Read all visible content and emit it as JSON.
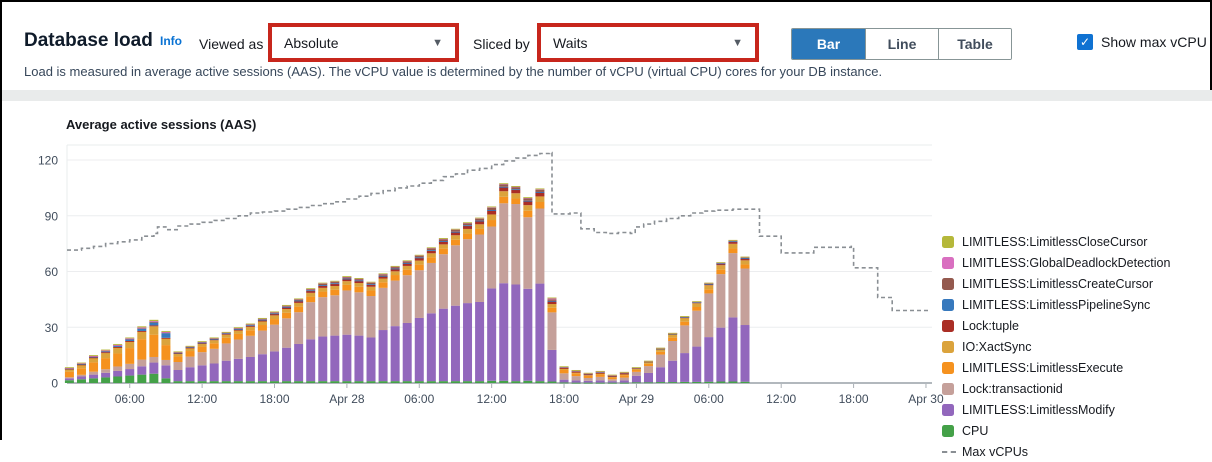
{
  "header": {
    "title": "Database load",
    "info_label": "Info"
  },
  "controls": {
    "viewed_as_label": "Viewed as",
    "viewed_as_value": "Absolute",
    "sliced_by_label": "Sliced by",
    "sliced_by_value": "Waits",
    "view_buttons": [
      {
        "label": "Bar",
        "selected": true
      },
      {
        "label": "Line",
        "selected": false
      },
      {
        "label": "Table",
        "selected": false
      }
    ],
    "show_max_vcpu_label": "Show max vCPU",
    "show_max_vcpu_checked": true
  },
  "description": "Load is measured in average active sessions (AAS). The vCPU value is determined by the number of vCPU (virtual CPU) cores for your DB instance.",
  "icons": {
    "caret": "▼",
    "check": "✓"
  },
  "colors": {
    "annotation_red": "#c7261c",
    "selected_button_blue": "#2b78ba",
    "checkbox_blue": "#0f72d2",
    "info_link_blue": "#0972d3",
    "max_vcpu_gray": "#8a8f94"
  },
  "chart_data": {
    "type": "bar",
    "stacked": true,
    "title": "Average active sessions (AAS)",
    "ylabel": "",
    "xlabel": "",
    "grid": true,
    "legend_position": "right",
    "y_axis": {
      "min": 0,
      "max": 129,
      "ticks": [
        0,
        30,
        60,
        90,
        120
      ]
    },
    "x_axis": {
      "unit": "hours since Apr 27 00:00",
      "domain": [
        0.8,
        72.5
      ],
      "ticks": [
        {
          "t": 6,
          "label": "06:00"
        },
        {
          "t": 12,
          "label": "12:00"
        },
        {
          "t": 18,
          "label": "18:00"
        },
        {
          "t": 24,
          "label": "Apr 28"
        },
        {
          "t": 30,
          "label": "06:00"
        },
        {
          "t": 36,
          "label": "12:00"
        },
        {
          "t": 42,
          "label": "18:00"
        },
        {
          "t": 48,
          "label": "Apr 29"
        },
        {
          "t": 54,
          "label": "06:00"
        },
        {
          "t": 60,
          "label": "12:00"
        },
        {
          "t": 66,
          "label": "18:00"
        },
        {
          "t": 72,
          "label": "Apr 30"
        }
      ]
    },
    "bar_start_hour": 1,
    "bar_interval_hours": 1,
    "series": [
      {
        "name": "CPU",
        "color": "#44a148",
        "values": [
          1.5,
          2,
          2.5,
          3,
          3.5,
          4,
          4.5,
          5,
          2.5,
          1,
          1,
          1,
          1,
          1,
          1,
          1,
          1,
          1,
          1,
          1,
          1,
          1,
          1,
          1,
          1,
          1,
          1,
          1,
          1,
          1,
          1,
          1,
          1,
          1,
          1,
          1.2,
          1.2,
          1,
          1.2,
          1,
          0.8,
          0.3,
          0.2,
          0.2,
          0.2,
          0.2,
          0.2,
          0.4,
          0.4,
          0.5,
          0.5,
          0.6,
          0.6,
          0.7,
          0.8,
          0.8,
          0.7
        ]
      },
      {
        "name": "LIMITLESS:LimitlessModify",
        "color": "#9267bc",
        "values": [
          1,
          1.5,
          2,
          2.5,
          3,
          3.5,
          4.5,
          6,
          7,
          6,
          7.5,
          8.5,
          9.5,
          11,
          12,
          13,
          14.5,
          16,
          18,
          20,
          22.5,
          24,
          24.5,
          25,
          24.5,
          23.5,
          27.5,
          29.6,
          31.3,
          34,
          36.5,
          39,
          40.6,
          42,
          42.6,
          49.7,
          52.5,
          52,
          49.5,
          52.5,
          17,
          1.5,
          1.2,
          1,
          1.2,
          0.8,
          1.2,
          3.5,
          5,
          8,
          11.5,
          15.5,
          19,
          24,
          29,
          34.5,
          30.5
        ]
      },
      {
        "name": "Lock:transactionid",
        "color": "#c5a09a",
        "values": [
          0.6,
          0.9,
          1.6,
          1.9,
          2.4,
          2.8,
          3.6,
          3,
          2.9,
          4.3,
          5.7,
          7.1,
          7.9,
          9.3,
          10.4,
          11.4,
          12.7,
          14.4,
          15.8,
          17.1,
          20,
          21.2,
          21.7,
          23.8,
          23.3,
          22.3,
          22.7,
          24.5,
          25.7,
          25.7,
          27.1,
          29.3,
          32.5,
          34.4,
          36.3,
          33.3,
          43,
          43.3,
          38.5,
          40.4,
          20.2,
          3.4,
          2.3,
          1.5,
          1.9,
          1,
          1.5,
          2.1,
          3.7,
          6.8,
          10.6,
          14.9,
          19.3,
          23.5,
          28.8,
          34.6,
          30.4
        ]
      },
      {
        "name": "LIMITLESS:LimitlessExecute",
        "color": "#f5921f",
        "values": [
          3,
          3.5,
          5,
          6,
          7,
          8.5,
          11,
          12,
          8,
          3,
          3,
          3,
          3,
          3,
          3,
          3,
          3,
          3,
          3,
          3,
          3,
          3,
          3,
          3,
          3,
          3,
          3,
          3,
          3,
          3,
          3,
          3,
          3,
          3,
          3,
          3.5,
          3.5,
          3,
          3.5,
          3.5,
          2.5,
          1.8,
          1.5,
          1.2,
          1.3,
          1,
          1.3,
          1,
          1.2,
          1.5,
          1.8,
          2,
          2,
          2.2,
          2.4,
          2.5,
          2.2
        ]
      },
      {
        "name": "IO:XactSync",
        "color": "#dba33c",
        "values": [
          1.5,
          2,
          2.5,
          3,
          3.2,
          3.5,
          4,
          4.5,
          3.5,
          1.5,
          1.5,
          1.5,
          1.6,
          1.7,
          1.8,
          1.8,
          1.9,
          2,
          2,
          2,
          2,
          2,
          2,
          2,
          2,
          2,
          2,
          2,
          2,
          2.2,
          2.2,
          2.3,
          2.4,
          2.5,
          2.5,
          3,
          3,
          2.8,
          3,
          3,
          2,
          1,
          0.8,
          0.7,
          0.8,
          0.6,
          0.8,
          1,
          1.2,
          1.5,
          1.8,
          2,
          2,
          2.2,
          2.4,
          2.5,
          2.2
        ]
      },
      {
        "name": "Lock:tuple",
        "color": "#aa2e25",
        "values": [
          0.1,
          0.1,
          0.2,
          0.2,
          0.3,
          0.3,
          0.4,
          0.5,
          0.4,
          0.3,
          0.4,
          0.4,
          0.5,
          0.5,
          0.6,
          0.6,
          0.7,
          0.8,
          0.9,
          1,
          1.1,
          1.2,
          1.2,
          1.2,
          1.2,
          1.2,
          1.3,
          1.3,
          1.4,
          1.5,
          1.5,
          1.6,
          1.7,
          1.8,
          1.8,
          2.2,
          2.2,
          2,
          2.2,
          2.2,
          1.5,
          0.1,
          0.1,
          0.1,
          0.1,
          0.1,
          0.1,
          0.1,
          0.1,
          0.2,
          0.3,
          0.4,
          0.5,
          0.7,
          0.9,
          1.3,
          1.2
        ]
      },
      {
        "name": "LIMITLESS:LimitlessPipelineSync",
        "color": "#3779bd",
        "values": [
          0.2,
          0.3,
          0.4,
          0.5,
          0.6,
          0.8,
          1.2,
          1.5,
          2.5,
          0.3,
          0.3,
          0.3,
          0.3,
          0.3,
          0.3,
          0.3,
          0.3,
          0.3,
          0.3,
          0.3,
          0.3,
          0.3,
          0.3,
          0.2,
          0.2,
          0.2,
          0.2,
          0.2,
          0.2,
          0.2,
          0.2,
          0.2,
          0.2,
          0.2,
          0.2,
          0.2,
          0.2,
          0.2,
          0.2,
          0.2,
          0.2,
          0.5,
          0.5,
          0.4,
          0.6,
          0.4,
          0.5,
          0.1,
          0.1,
          0.1,
          0.1,
          0.1,
          0.1,
          0.1,
          0.1,
          0.1,
          0.1
        ]
      },
      {
        "name": "LIMITLESS:LimitlessCreateCursor",
        "color": "#94594e",
        "values": [
          0.2,
          0.3,
          0.3,
          0.4,
          0.4,
          0.5,
          0.6,
          0.7,
          0.6,
          0.3,
          0.3,
          0.4,
          0.4,
          0.4,
          0.5,
          0.5,
          0.5,
          0.6,
          0.6,
          0.7,
          0.7,
          0.8,
          0.8,
          0.8,
          0.8,
          0.8,
          0.8,
          0.9,
          0.9,
          0.9,
          1,
          1,
          1,
          1,
          1,
          1.2,
          1.2,
          1.1,
          1.2,
          1.2,
          0.8,
          0.1,
          0.1,
          0.1,
          0.1,
          0.1,
          0.1,
          0.1,
          0.1,
          0.2,
          0.2,
          0.3,
          0.3,
          0.4,
          0.4,
          0.5,
          0.5
        ]
      },
      {
        "name": "LIMITLESS:GlobalDeadlockDetection",
        "color": "#d96fc0",
        "values": [
          0.1,
          0.1,
          0.1,
          0.1,
          0.1,
          0.1,
          0.1,
          0.1,
          0.1,
          0.1,
          0.1,
          0.1,
          0.1,
          0.1,
          0.2,
          0.2,
          0.2,
          0.2,
          0.2,
          0.2,
          0.2,
          0.3,
          0.3,
          0.3,
          0.3,
          0.3,
          0.3,
          0.3,
          0.3,
          0.3,
          0.3,
          0.4,
          0.4,
          0.4,
          0.4,
          0.5,
          0.5,
          0.4,
          0.5,
          0.5,
          0.8,
          0.1,
          0.1,
          0.1,
          0.1,
          0.1,
          0.1,
          0.1,
          0.1,
          0.1,
          0.1,
          0.1,
          0.1,
          0.1,
          0.1,
          0.1,
          0.1
        ]
      },
      {
        "name": "LIMITLESS:LimitlessCloseCursor",
        "color": "#b5b83a",
        "values": [
          0.3,
          0.3,
          0.4,
          0.4,
          0.5,
          0.5,
          0.6,
          0.7,
          0.5,
          0.2,
          0.2,
          0.2,
          0.2,
          0.2,
          0.2,
          0.2,
          0.2,
          0.2,
          0.2,
          0.2,
          0.2,
          0.2,
          0.2,
          0.2,
          0.2,
          0.2,
          0.2,
          0.2,
          0.2,
          0.2,
          0.2,
          0.2,
          0.2,
          0.2,
          0.2,
          0.2,
          0.2,
          0.2,
          0.2,
          0.2,
          0.2,
          0.2,
          0.2,
          0.2,
          0.2,
          0.2,
          0.2,
          0.1,
          0.1,
          0.1,
          0.1,
          0.1,
          0.1,
          0.1,
          0.1,
          0.1,
          0.1
        ]
      }
    ],
    "max_vcpus": {
      "name": "Max vCPUs",
      "color": "#8a8f94",
      "style": "dashed",
      "points": [
        [
          0.8,
          71.5
        ],
        [
          2,
          72.5
        ],
        [
          3,
          73.5
        ],
        [
          4,
          75
        ],
        [
          5,
          76
        ],
        [
          6,
          77
        ],
        [
          7,
          79
        ],
        [
          8,
          80.5
        ],
        [
          8.3,
          84
        ],
        [
          9,
          82.5
        ],
        [
          10,
          84.5
        ],
        [
          11,
          85.5
        ],
        [
          12,
          86.5
        ],
        [
          13,
          87.5
        ],
        [
          14,
          88.5
        ],
        [
          15,
          90
        ],
        [
          16,
          91.5
        ],
        [
          17,
          92
        ],
        [
          18,
          92.5
        ],
        [
          19,
          93.5
        ],
        [
          20,
          94.5
        ],
        [
          21,
          95.5
        ],
        [
          22,
          96.5
        ],
        [
          23,
          97.5
        ],
        [
          24,
          99
        ],
        [
          25,
          100.5
        ],
        [
          26,
          102
        ],
        [
          27,
          103.5
        ],
        [
          28,
          105
        ],
        [
          29,
          106
        ],
        [
          30,
          107.5
        ],
        [
          31,
          109
        ],
        [
          32,
          111
        ],
        [
          33,
          112.5
        ],
        [
          34,
          114.5
        ],
        [
          35,
          115.5
        ],
        [
          36,
          117.5
        ],
        [
          37,
          119.5
        ],
        [
          38,
          121
        ],
        [
          39,
          122.5
        ],
        [
          40,
          123.5
        ],
        [
          40.8,
          124
        ],
        [
          41,
          91
        ],
        [
          42.5,
          91.5
        ],
        [
          43.4,
          83
        ],
        [
          44.5,
          81
        ],
        [
          45.5,
          80.5
        ],
        [
          46.5,
          81
        ],
        [
          47.5,
          80.5
        ],
        [
          47.9,
          84
        ],
        [
          48.6,
          85.5
        ],
        [
          49.5,
          87
        ],
        [
          50.5,
          88.5
        ],
        [
          51.5,
          90
        ],
        [
          52.5,
          91.5
        ],
        [
          53.5,
          92.5
        ],
        [
          54.5,
          93
        ],
        [
          56,
          93.5
        ],
        [
          58,
          93.5
        ],
        [
          58.2,
          79
        ],
        [
          59.8,
          79
        ],
        [
          60,
          70
        ],
        [
          62.5,
          70
        ],
        [
          62.7,
          73
        ],
        [
          65.8,
          73.5
        ],
        [
          66,
          62
        ],
        [
          67.8,
          62
        ],
        [
          68,
          46
        ],
        [
          69,
          46
        ],
        [
          69.2,
          39
        ],
        [
          72.4,
          39
        ]
      ]
    }
  }
}
